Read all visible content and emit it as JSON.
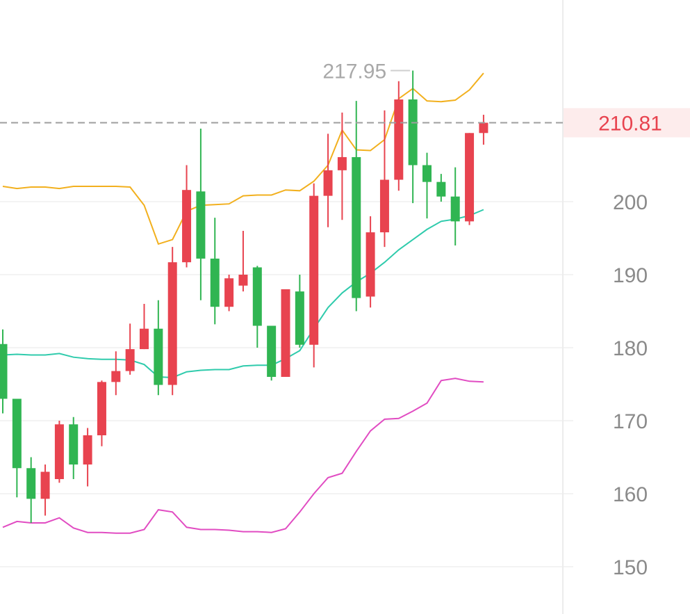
{
  "chart_data": {
    "type": "candlestick",
    "ylim": [
      145,
      228
    ],
    "y_ticks": [
      "200",
      "190",
      "180",
      "170",
      "160",
      "150"
    ],
    "current_price": 210.81,
    "current_price_label": "210.81",
    "high_label": "217.95",
    "colors": {
      "up": "#e8434f",
      "down": "#30b552",
      "upper_band": "#f2b01e",
      "middle_band": "#2fcbac",
      "lower_band": "#e14cc2",
      "price_line": "#9e9e9e"
    },
    "candles": [
      {
        "open": 180.5,
        "close": 173.0,
        "high": 182.5,
        "low": 171.0
      },
      {
        "open": 173.0,
        "close": 163.5,
        "high": 173.0,
        "low": 159.5
      },
      {
        "open": 163.5,
        "close": 159.3,
        "high": 165.0,
        "low": 156.0
      },
      {
        "open": 159.3,
        "close": 163.0,
        "high": 164.0,
        "low": 157.0
      },
      {
        "open": 162.0,
        "close": 169.5,
        "high": 170.0,
        "low": 161.5
      },
      {
        "open": 169.5,
        "close": 164.0,
        "high": 170.5,
        "low": 162.0
      },
      {
        "open": 164.0,
        "close": 168.0,
        "high": 169.0,
        "low": 161.0
      },
      {
        "open": 168.0,
        "close": 175.3,
        "high": 175.5,
        "low": 166.5
      },
      {
        "open": 175.3,
        "close": 176.8,
        "high": 179.5,
        "low": 173.5
      },
      {
        "open": 176.8,
        "close": 179.8,
        "high": 183.3,
        "low": 176.3
      },
      {
        "open": 179.8,
        "close": 182.6,
        "high": 186.0,
        "low": 179.8
      },
      {
        "open": 182.6,
        "close": 174.9,
        "high": 186.5,
        "low": 173.5
      },
      {
        "open": 174.9,
        "close": 191.7,
        "high": 193.8,
        "low": 173.5
      },
      {
        "open": 191.7,
        "close": 201.6,
        "high": 205.0,
        "low": 191.0
      },
      {
        "open": 201.4,
        "close": 192.2,
        "high": 210.0,
        "low": 186.5
      },
      {
        "open": 192.2,
        "close": 185.6,
        "high": 197.8,
        "low": 183.2
      },
      {
        "open": 185.6,
        "close": 189.5,
        "high": 190.0,
        "low": 185.0
      },
      {
        "open": 188.5,
        "close": 190.0,
        "high": 196.0,
        "low": 187.7
      },
      {
        "open": 191.0,
        "close": 183.0,
        "high": 191.2,
        "low": 180.0
      },
      {
        "open": 183.0,
        "close": 176.0,
        "high": 183.0,
        "low": 175.5
      },
      {
        "open": 176.0,
        "close": 188.0,
        "high": 188.0,
        "low": 176.0
      },
      {
        "open": 187.7,
        "close": 180.4,
        "high": 190.0,
        "low": 180.0
      },
      {
        "open": 180.4,
        "close": 200.8,
        "high": 202.5,
        "low": 177.3
      },
      {
        "open": 200.8,
        "close": 204.3,
        "high": 209.3,
        "low": 196.5
      },
      {
        "open": 204.3,
        "close": 206.1,
        "high": 212.2,
        "low": 197.5
      },
      {
        "open": 206.1,
        "close": 186.8,
        "high": 213.8,
        "low": 185.0
      },
      {
        "open": 187.0,
        "close": 195.8,
        "high": 198.0,
        "low": 185.5
      },
      {
        "open": 195.8,
        "close": 203.0,
        "high": 212.5,
        "low": 193.8
      },
      {
        "open": 203.0,
        "close": 214.0,
        "high": 216.5,
        "low": 201.5
      },
      {
        "open": 214.0,
        "close": 205.0,
        "high": 217.95,
        "low": 199.8
      },
      {
        "open": 205.0,
        "close": 202.7,
        "high": 206.7,
        "low": 197.7
      },
      {
        "open": 202.7,
        "close": 200.7,
        "high": 203.8,
        "low": 200.0
      },
      {
        "open": 200.7,
        "close": 197.3,
        "high": 204.7,
        "low": 194.0
      },
      {
        "open": 197.3,
        "close": 209.4,
        "high": 209.4,
        "low": 196.8
      },
      {
        "open": 209.4,
        "close": 210.81,
        "high": 211.9,
        "low": 207.8
      }
    ],
    "upper_band": [
      202.1,
      201.8,
      202.0,
      202.0,
      201.8,
      202.1,
      202.1,
      202.1,
      202.1,
      202.0,
      199.5,
      194.2,
      194.8,
      198.7,
      199.5,
      199.6,
      199.7,
      200.8,
      200.9,
      200.9,
      201.6,
      201.5,
      202.8,
      205.0,
      209.8,
      207.1,
      207.0,
      208.5,
      214.1,
      215.5,
      213.8,
      213.7,
      213.9,
      215.3,
      217.6
    ],
    "middle_band": [
      179.0,
      179.1,
      179.0,
      179.0,
      179.2,
      178.7,
      178.5,
      178.4,
      178.4,
      178.3,
      177.7,
      176.0,
      175.9,
      176.7,
      176.9,
      177.0,
      177.0,
      177.5,
      177.6,
      177.6,
      178.5,
      179.6,
      182.6,
      185.5,
      187.5,
      189.0,
      190.2,
      191.7,
      193.4,
      194.8,
      196.2,
      197.3,
      197.6,
      198.1,
      198.9
    ],
    "lower_band": [
      155.4,
      156.2,
      156.0,
      156.0,
      156.7,
      155.3,
      154.7,
      154.7,
      154.6,
      154.6,
      155.1,
      157.8,
      157.5,
      155.4,
      155.1,
      155.1,
      155.0,
      154.8,
      154.8,
      154.7,
      155.2,
      157.5,
      160.0,
      162.2,
      162.8,
      165.8,
      168.6,
      170.2,
      170.3,
      171.3,
      172.4,
      175.5,
      175.8,
      175.4,
      175.3
    ]
  }
}
